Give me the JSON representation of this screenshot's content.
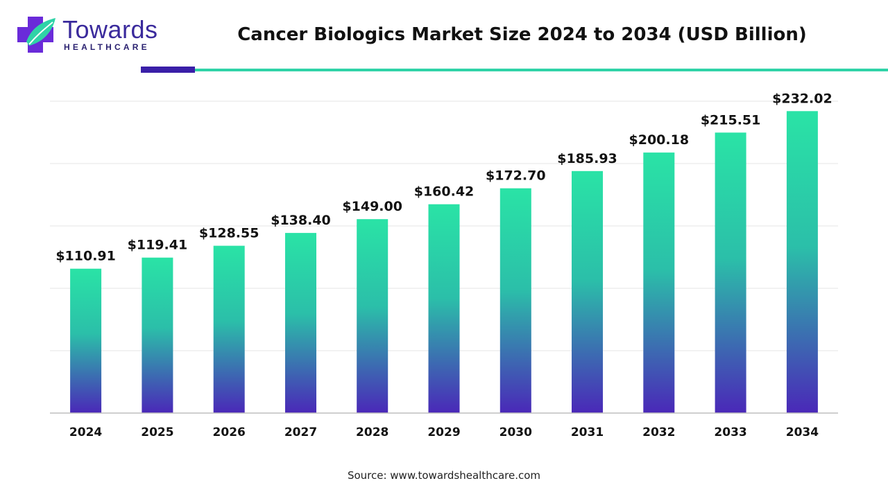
{
  "brand": {
    "name": "Towards",
    "sub": "HEALTHCARE"
  },
  "source": "Source: www.towardshealthcare.com",
  "colors": {
    "bar_top": "#2ae3a6",
    "bar_bottom": "#4a28b8",
    "accent_dark": "#3a1fa8",
    "accent_teal": "#2fd3a7",
    "grid": "#e6e6e6",
    "axis": "#bdbdbd"
  },
  "chart_data": {
    "type": "bar",
    "title": "Cancer Biologics Market Size 2024 to 2034 (USD Billion)",
    "categories": [
      "2024",
      "2025",
      "2026",
      "2027",
      "2028",
      "2029",
      "2030",
      "2031",
      "2032",
      "2033",
      "2034"
    ],
    "values": [
      110.91,
      119.41,
      128.55,
      138.4,
      149.0,
      160.42,
      172.7,
      185.93,
      200.18,
      215.51,
      232.02
    ],
    "data_labels": [
      "$110.91",
      "$119.41",
      "$128.55",
      "$138.40",
      "$149.00",
      "$160.42",
      "$172.70",
      "$185.93",
      "$200.18",
      "$215.51",
      "$232.02"
    ],
    "xlabel": "",
    "ylabel": "",
    "ylim": [
      0,
      250
    ],
    "grid": true,
    "legend": "none"
  }
}
